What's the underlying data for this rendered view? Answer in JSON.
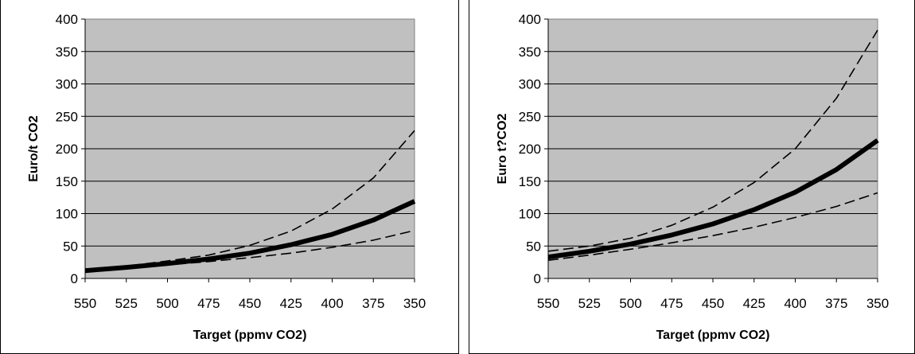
{
  "chart_data": [
    {
      "type": "line",
      "title": "",
      "xlabel": "Target (ppmv CO2)",
      "ylabel": "Euro/t CO2",
      "x": [
        550,
        525,
        500,
        475,
        450,
        425,
        400,
        375,
        350
      ],
      "x_tick_labels": [
        "550",
        "525",
        "500",
        "475",
        "450",
        "425",
        "400",
        "375",
        "350"
      ],
      "xlim": [
        550,
        350
      ],
      "ylim": [
        0,
        400
      ],
      "y_ticks": [
        0,
        50,
        100,
        150,
        200,
        250,
        300,
        350,
        400
      ],
      "y_tick_labels": [
        "0",
        "50",
        "100",
        "150",
        "200",
        "250",
        "300",
        "350",
        "400"
      ],
      "grid": "horizontal",
      "plot_background": "#c0c0c0",
      "series": [
        {
          "style": "solid-thick",
          "values": [
            12,
            17,
            23,
            30,
            39,
            52,
            68,
            90,
            119
          ]
        },
        {
          "style": "dashed",
          "values": [
            14,
            19,
            27,
            36,
            51,
            73,
            107,
            155,
            228
          ]
        },
        {
          "style": "dashed",
          "values": [
            12,
            16,
            21,
            26,
            32,
            39,
            48,
            59,
            74
          ]
        }
      ]
    },
    {
      "type": "line",
      "title": "",
      "xlabel": "Target (ppmv CO2)",
      "ylabel": "Euro t?CO2",
      "x": [
        550,
        525,
        500,
        475,
        450,
        425,
        400,
        375,
        350
      ],
      "x_tick_labels": [
        "550",
        "525",
        "500",
        "475",
        "450",
        "425",
        "400",
        "375",
        "350"
      ],
      "xlim": [
        550,
        350
      ],
      "ylim": [
        0,
        400
      ],
      "y_ticks": [
        0,
        50,
        100,
        150,
        200,
        250,
        300,
        350,
        400
      ],
      "y_tick_labels": [
        "0",
        "50",
        "100",
        "150",
        "200",
        "250",
        "300",
        "350",
        "400"
      ],
      "grid": "horizontal",
      "plot_background": "#c0c0c0",
      "series": [
        {
          "style": "solid-thick",
          "values": [
            33,
            42,
            53,
            67,
            84,
            106,
            133,
            168,
            213
          ]
        },
        {
          "style": "dashed",
          "values": [
            42,
            50,
            62,
            82,
            110,
            148,
            200,
            278,
            383
          ]
        },
        {
          "style": "dashed",
          "values": [
            28,
            36,
            45,
            55,
            66,
            79,
            94,
            111,
            132
          ]
        }
      ]
    }
  ]
}
